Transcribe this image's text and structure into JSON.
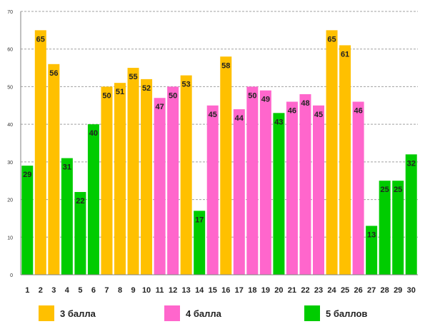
{
  "chart_data": {
    "type": "bar",
    "categories": [
      "1",
      "2",
      "3",
      "4",
      "5",
      "6",
      "7",
      "8",
      "9",
      "10",
      "11",
      "12",
      "13",
      "14",
      "15",
      "16",
      "17",
      "18",
      "19",
      "20",
      "21",
      "22",
      "23",
      "24",
      "25",
      "26",
      "27",
      "28",
      "29",
      "30"
    ],
    "values": [
      29,
      65,
      56,
      31,
      22,
      40,
      50,
      51,
      55,
      52,
      47,
      50,
      53,
      17,
      45,
      58,
      44,
      50,
      49,
      43,
      46,
      48,
      45,
      65,
      61,
      46,
      13,
      25,
      25,
      32
    ],
    "groups": [
      "5 баллов",
      "3 балла",
      "3 балла",
      "5 баллов",
      "5 баллов",
      "5 баллов",
      "3 балла",
      "3 балла",
      "3 балла",
      "3 балла",
      "4 балла",
      "4 балла",
      "3 балла",
      "5 баллов",
      "4 балла",
      "3 балла",
      "4 балла",
      "4 балла",
      "4 балла",
      "5 баллов",
      "4 балла",
      "4 балла",
      "4 балла",
      "3 балла",
      "3 балла",
      "4 балла",
      "5 баллов",
      "5 баллов",
      "5 баллов",
      "5 баллов"
    ],
    "yticks": [
      "0",
      "10",
      "20",
      "30",
      "40",
      "50",
      "60",
      "70"
    ],
    "ylim": [
      0,
      70
    ],
    "grid": true,
    "legend_position": "bottom",
    "legend": [
      {
        "name": "3 балла",
        "color": "#FFC000"
      },
      {
        "name": "4 балла",
        "color": "#FF66CC"
      },
      {
        "name": "5 баллов",
        "color": "#00CC00"
      }
    ]
  },
  "colors": {
    "3 балла": "#FFC000",
    "4 балла": "#FF66CC",
    "5 баллов": "#00CC00",
    "grid": "#a0a0a0",
    "axis": "#808080"
  }
}
